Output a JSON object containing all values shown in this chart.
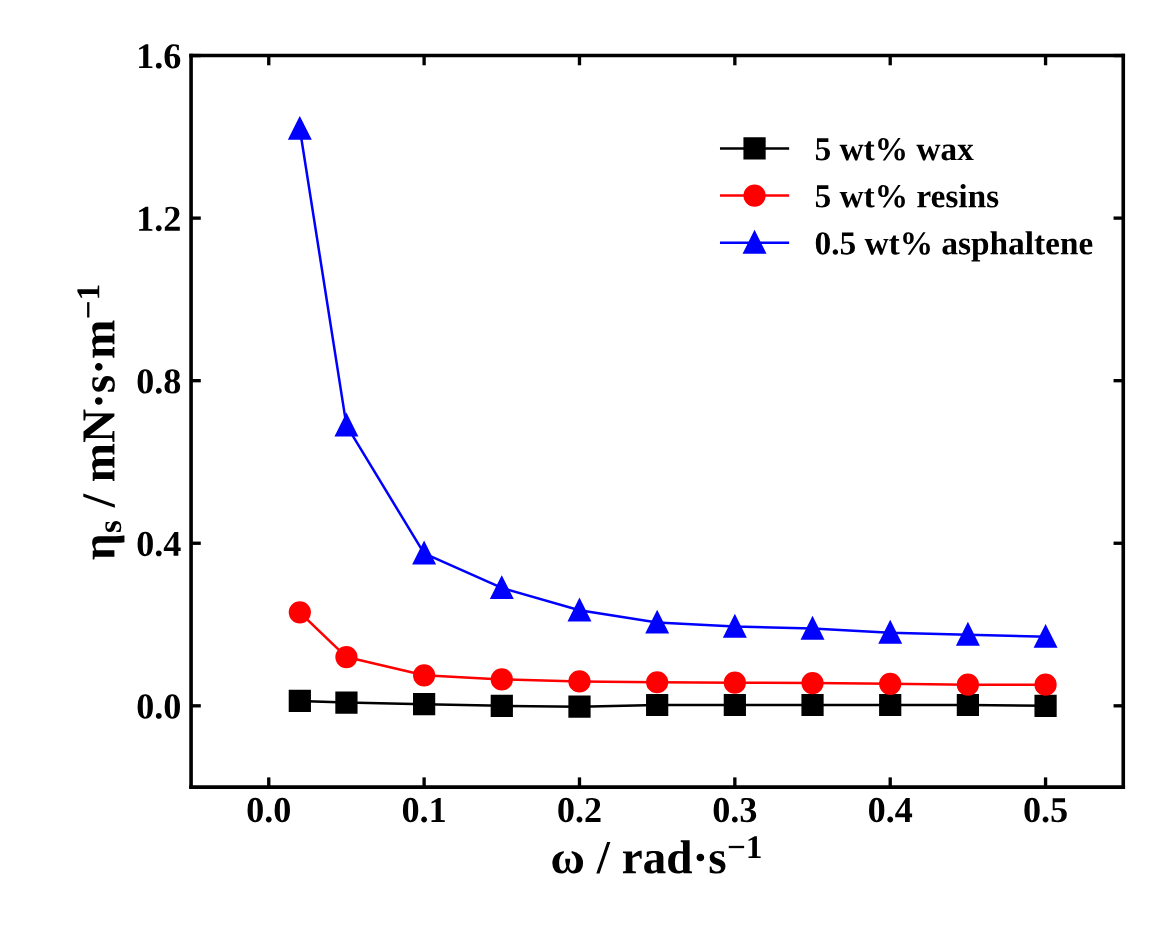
{
  "chart_data": {
    "type": "line",
    "xlabel": "ω / rad·s$^{−1}$",
    "ylabel": "η$_{s}$ / mN·s·m$^{−1}$",
    "x": [
      0.02,
      0.05,
      0.1,
      0.15,
      0.2,
      0.25,
      0.3,
      0.35,
      0.4,
      0.45,
      0.5
    ],
    "series": [
      {
        "name": "5 wt% wax",
        "color": "#000000",
        "marker": "square",
        "values": [
          0.012,
          0.008,
          0.004,
          0.0,
          -0.002,
          0.002,
          0.002,
          0.002,
          0.002,
          0.002,
          0.0
        ]
      },
      {
        "name": "5 wt% resins",
        "color": "#ff0000",
        "marker": "circle",
        "values": [
          0.23,
          0.12,
          0.075,
          0.065,
          0.06,
          0.058,
          0.057,
          0.056,
          0.054,
          0.052,
          0.052
        ]
      },
      {
        "name": "0.5 wt% asphaltene",
        "color": "#0000ff",
        "marker": "triangle",
        "values": [
          1.42,
          0.69,
          0.375,
          0.29,
          0.235,
          0.205,
          0.195,
          0.19,
          0.18,
          0.175,
          0.17
        ]
      }
    ],
    "xlim": [
      -0.05,
      0.55
    ],
    "xticks": [
      {
        "value": 0,
        "label": "0.0"
      },
      0.1,
      0.2,
      0.3,
      0.4,
      0.5
    ],
    "ylim": [
      -0.2,
      1.6
    ],
    "yticks": [
      {
        "value": 0,
        "label": "0.0"
      },
      0.4,
      0.8,
      1.2,
      1.6
    ],
    "legend": "top right",
    "grid": false
  }
}
